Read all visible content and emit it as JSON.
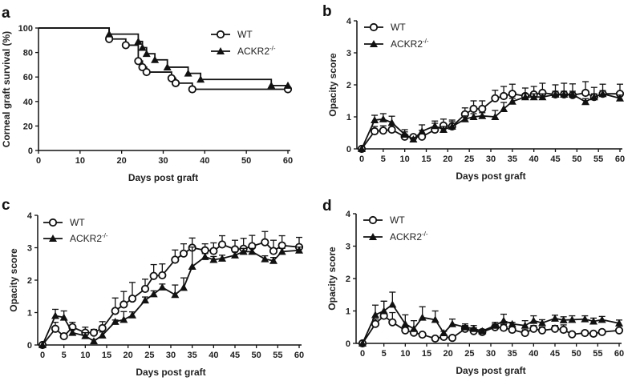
{
  "colors": {
    "ink": "#111111",
    "background": "#ffffff"
  },
  "chart_data": [
    {
      "panel": "a",
      "type": "line",
      "subtype": "kaplan-meier-step",
      "xlabel": "Days post graft",
      "ylabel": "Corneal graft survival (%)",
      "xlim": [
        0,
        60
      ],
      "ylim": [
        0,
        100
      ],
      "xticks": [
        "0",
        "10",
        "20",
        "30",
        "40",
        "50",
        "60"
      ],
      "yticks": [
        "0",
        "20",
        "40",
        "60",
        "80",
        "100"
      ],
      "legend": "top-right",
      "series": [
        {
          "name": "WT",
          "marker": "open-circle",
          "x": [
            0,
            17,
            21,
            24,
            25,
            26,
            32,
            33,
            37,
            60
          ],
          "y": [
            100,
            91,
            86,
            73,
            68,
            64,
            59,
            55,
            50,
            50
          ]
        },
        {
          "name": "ACKR2",
          "name_sup": "-/-",
          "marker": "filled-triangle",
          "x": [
            0,
            17,
            24,
            25,
            26,
            28,
            31,
            36,
            39,
            56,
            60
          ],
          "y": [
            100,
            95,
            89,
            84,
            79,
            74,
            68,
            63,
            58,
            53,
            53
          ]
        }
      ]
    },
    {
      "panel": "b",
      "type": "line",
      "xlabel": "Days post graft",
      "ylabel": "Opacity score",
      "xlim": [
        0,
        60
      ],
      "ylim": [
        0,
        4
      ],
      "xticks": [
        "0",
        "5",
        "10",
        "15",
        "20",
        "25",
        "30",
        "35",
        "40",
        "45",
        "50",
        "55",
        "60"
      ],
      "yticks": [
        "0",
        "1",
        "2",
        "3",
        "4"
      ],
      "legend": "top-left",
      "x": [
        0,
        3,
        5,
        7,
        10,
        12,
        14,
        17,
        19,
        21,
        24,
        26,
        28,
        31,
        33,
        35,
        38,
        40,
        42,
        45,
        47,
        49,
        52,
        54,
        56,
        60
      ],
      "series": [
        {
          "name": "WT",
          "marker": "open-circle",
          "y": [
            0,
            0.55,
            0.57,
            0.6,
            0.38,
            0.37,
            0.38,
            0.6,
            0.73,
            0.7,
            1.08,
            1.25,
            1.25,
            1.58,
            1.65,
            1.72,
            1.65,
            1.7,
            1.75,
            1.7,
            1.7,
            1.68,
            1.75,
            1.62,
            1.72,
            1.72
          ],
          "err": [
            0,
            0.15,
            0.15,
            0.15,
            0.15,
            0.05,
            0.2,
            0.2,
            0.2,
            0.2,
            0.2,
            0.25,
            0.25,
            0.25,
            0.3,
            0.3,
            0.25,
            0.25,
            0.3,
            0.3,
            0.35,
            0.35,
            0.35,
            0.3,
            0.3,
            0.3
          ]
        },
        {
          "name": "ACKR2",
          "name_sup": "-/-",
          "marker": "filled-triangle",
          "y": [
            0,
            0.9,
            0.93,
            0.82,
            0.45,
            0.3,
            0.55,
            0.72,
            0.6,
            0.7,
            0.93,
            1.0,
            1.03,
            1.0,
            1.25,
            1.48,
            1.62,
            1.62,
            1.62,
            1.7,
            1.7,
            1.7,
            1.47,
            1.62,
            1.72,
            1.58
          ],
          "err": [
            0,
            0.15,
            0.17,
            0.2,
            0.15,
            0.05,
            0.2,
            0.15,
            0.1,
            0.15,
            0.1,
            0.1,
            0.1,
            0.2,
            0.2,
            0.1,
            0.1,
            0.1,
            0.1,
            0.1,
            0.1,
            0.1,
            0.1,
            0.1,
            0.1,
            0.1
          ]
        }
      ]
    },
    {
      "panel": "c",
      "type": "line",
      "xlabel": "Days post graft",
      "ylabel": "Opacity score",
      "xlim": [
        0,
        60
      ],
      "ylim": [
        0,
        4
      ],
      "xticks": [
        "0",
        "5",
        "10",
        "15",
        "20",
        "25",
        "30",
        "35",
        "40",
        "45",
        "50",
        "55",
        "60"
      ],
      "yticks": [
        "0",
        "1",
        "2",
        "3",
        "4"
      ],
      "legend": "top-left",
      "x": [
        0,
        3,
        5,
        7,
        10,
        12,
        14,
        17,
        19,
        21,
        24,
        26,
        28,
        31,
        33,
        35,
        38,
        40,
        42,
        45,
        47,
        49,
        52,
        54,
        56,
        60
      ],
      "series": [
        {
          "name": "WT",
          "marker": "open-circle",
          "y": [
            0,
            0.5,
            0.27,
            0.55,
            0.38,
            0.38,
            0.52,
            1.05,
            1.25,
            1.43,
            1.73,
            2.13,
            2.15,
            2.63,
            2.82,
            3.0,
            2.92,
            2.9,
            3.1,
            2.95,
            2.97,
            3.05,
            3.17,
            2.9,
            3.07,
            3.02
          ],
          "err": [
            0,
            0.2,
            0.07,
            0.15,
            0.17,
            0.1,
            0.2,
            0.4,
            0.4,
            0.5,
            0.3,
            0.35,
            0.35,
            0.3,
            0.3,
            0.3,
            0.2,
            0.25,
            0.27,
            0.28,
            0.32,
            0.33,
            0.33,
            0.33,
            0.3,
            0.3
          ]
        },
        {
          "name": "ACKR2",
          "name_sup": "-/-",
          "marker": "filled-triangle",
          "y": [
            0,
            0.9,
            0.85,
            0.38,
            0.28,
            0.12,
            0.3,
            0.72,
            0.78,
            0.92,
            1.38,
            1.57,
            1.78,
            1.55,
            1.77,
            2.42,
            2.72,
            2.63,
            2.67,
            2.77,
            2.88,
            2.88,
            2.65,
            2.6,
            2.88,
            2.92
          ],
          "err": [
            0,
            0.2,
            0.2,
            0.1,
            0.1,
            0.05,
            0.1,
            0.05,
            0.25,
            0.1,
            0.1,
            0.1,
            0.1,
            0.3,
            0.3,
            0.6,
            0.1,
            0.1,
            0.1,
            0.1,
            0.1,
            0.1,
            0.1,
            0.1,
            0.1,
            0.1
          ]
        }
      ]
    },
    {
      "panel": "d",
      "type": "line",
      "xlabel": "Days post graft",
      "ylabel": "Opacity score",
      "xlim": [
        0,
        60
      ],
      "ylim": [
        0,
        4
      ],
      "xticks": [
        "0",
        "5",
        "10",
        "15",
        "20",
        "25",
        "30",
        "35",
        "40",
        "45",
        "50",
        "55",
        "60"
      ],
      "yticks": [
        "0",
        "1",
        "2",
        "3",
        "4"
      ],
      "legend": "top-left",
      "x": [
        0,
        3,
        5,
        7,
        10,
        12,
        14,
        17,
        19,
        21,
        24,
        26,
        28,
        31,
        33,
        35,
        38,
        40,
        42,
        45,
        47,
        49,
        52,
        54,
        56,
        60
      ],
      "series": [
        {
          "name": "WT",
          "marker": "open-circle",
          "y": [
            0,
            0.6,
            0.85,
            0.65,
            0.4,
            0.33,
            0.27,
            0.15,
            0.2,
            0.17,
            0.45,
            0.38,
            0.35,
            0.5,
            0.48,
            0.42,
            0.32,
            0.45,
            0.4,
            0.45,
            0.42,
            0.28,
            0.32,
            0.3,
            0.35,
            0.4
          ],
          "err": [
            0,
            0.15,
            0.45,
            0.3,
            0.1,
            0.05,
            0.05,
            0.05,
            0.05,
            0.05,
            0.1,
            0.1,
            0.05,
            0.1,
            0.1,
            0.1,
            0.1,
            0.1,
            0.1,
            0.1,
            0.15,
            0.05,
            0.05,
            0.05,
            0.05,
            0.05
          ]
        },
        {
          "name": "ACKR2",
          "name_sup": "-/-",
          "marker": "filled-triangle",
          "y": [
            0,
            0.88,
            1.0,
            1.2,
            0.6,
            0.45,
            0.8,
            0.73,
            0.32,
            0.6,
            0.5,
            0.45,
            0.38,
            0.55,
            0.7,
            0.6,
            0.55,
            0.7,
            0.63,
            0.77,
            0.72,
            0.73,
            0.75,
            0.68,
            0.73,
            0.62
          ],
          "err": [
            0,
            0.3,
            0.3,
            0.38,
            0.28,
            0.25,
            0.33,
            0.27,
            0.05,
            0.15,
            0.1,
            0.1,
            0.05,
            0.1,
            0.2,
            0.05,
            0.15,
            0.15,
            0.1,
            0.1,
            0.1,
            0.12,
            0.1,
            0.1,
            0.1,
            0.1
          ]
        }
      ]
    }
  ]
}
